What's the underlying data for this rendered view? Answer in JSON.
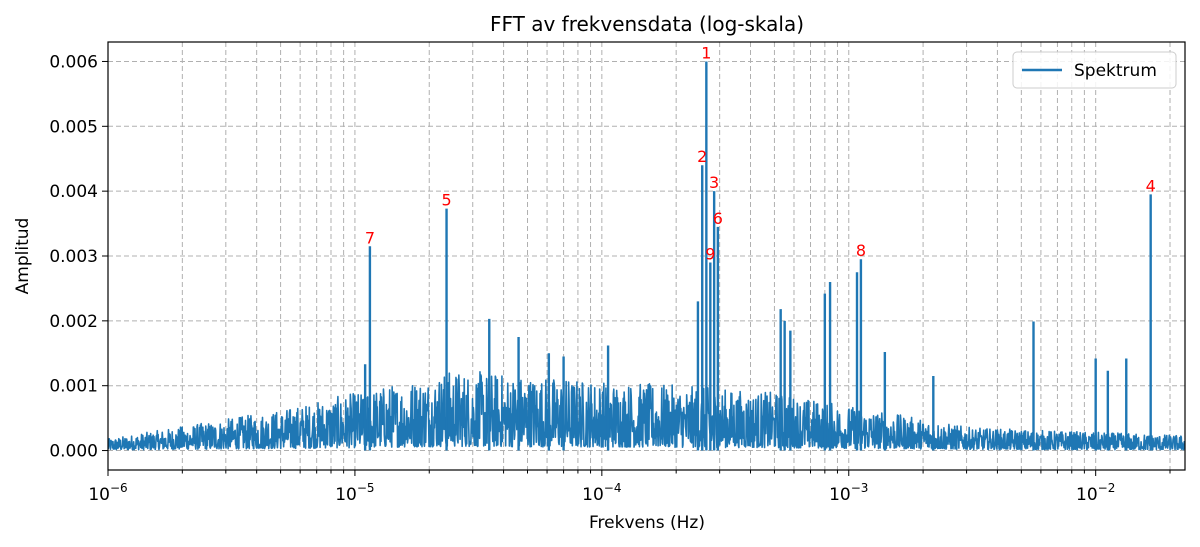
{
  "chart_data": {
    "type": "line",
    "title": "FFT av frekvensdata (log-skala)",
    "xlabel": "Frekvens (Hz)",
    "ylabel": "Amplitud",
    "xscale": "log",
    "xlim": [
      1e-06,
      0.023
    ],
    "ylim": [
      -0.0003,
      0.0063
    ],
    "xticks": [
      {
        "value": 1e-06,
        "base": "10",
        "exp": "−6"
      },
      {
        "value": 1e-05,
        "base": "10",
        "exp": "−5"
      },
      {
        "value": 0.0001,
        "base": "10",
        "exp": "−4"
      },
      {
        "value": 0.001,
        "base": "10",
        "exp": "−3"
      },
      {
        "value": 0.01,
        "base": "10",
        "exp": "−2"
      }
    ],
    "yticks": [
      {
        "value": 0.0,
        "label": "0.000"
      },
      {
        "value": 0.001,
        "label": "0.001"
      },
      {
        "value": 0.002,
        "label": "0.002"
      },
      {
        "value": 0.003,
        "label": "0.003"
      },
      {
        "value": 0.004,
        "label": "0.004"
      },
      {
        "value": 0.005,
        "label": "0.005"
      },
      {
        "value": 0.006,
        "label": "0.006"
      }
    ],
    "grid": true,
    "legend": {
      "position": "top-right"
    },
    "series": [
      {
        "name": "Spektrum",
        "color": "#1f77b4",
        "peaks": [
          {
            "x": 0.000265,
            "y": 0.006,
            "label": "1"
          },
          {
            "x": 0.000255,
            "y": 0.0044,
            "label": "2"
          },
          {
            "x": 0.000285,
            "y": 0.004,
            "label": "3"
          },
          {
            "x": 0.0167,
            "y": 0.00395,
            "label": "4"
          },
          {
            "x": 2.35e-05,
            "y": 0.00373,
            "label": "5"
          },
          {
            "x": 0.000295,
            "y": 0.00345,
            "label": "6"
          },
          {
            "x": 1.15e-05,
            "y": 0.00315,
            "label": "7"
          },
          {
            "x": 0.00112,
            "y": 0.00295,
            "label": "8"
          },
          {
            "x": 0.000275,
            "y": 0.0029,
            "label": "9"
          },
          {
            "x": 0.000245,
            "y": 0.0023
          },
          {
            "x": 1.1e-05,
            "y": 0.00133
          },
          {
            "x": 3.5e-05,
            "y": 0.00203
          },
          {
            "x": 4.6e-05,
            "y": 0.00175
          },
          {
            "x": 6.1e-05,
            "y": 0.0015
          },
          {
            "x": 7e-05,
            "y": 0.00145
          },
          {
            "x": 0.000106,
            "y": 0.00162
          },
          {
            "x": 0.00053,
            "y": 0.00218
          },
          {
            "x": 0.00055,
            "y": 0.002
          },
          {
            "x": 0.00058,
            "y": 0.00185
          },
          {
            "x": 0.0008,
            "y": 0.00242
          },
          {
            "x": 0.00084,
            "y": 0.0026
          },
          {
            "x": 0.00108,
            "y": 0.00275
          },
          {
            "x": 0.0014,
            "y": 0.00152
          },
          {
            "x": 0.0022,
            "y": 0.00115
          },
          {
            "x": 0.0056,
            "y": 0.00199
          },
          {
            "x": 0.01,
            "y": 0.00142
          },
          {
            "x": 0.0133,
            "y": 0.00142
          },
          {
            "x": 0.0112,
            "y": 0.00123
          }
        ]
      }
    ]
  }
}
